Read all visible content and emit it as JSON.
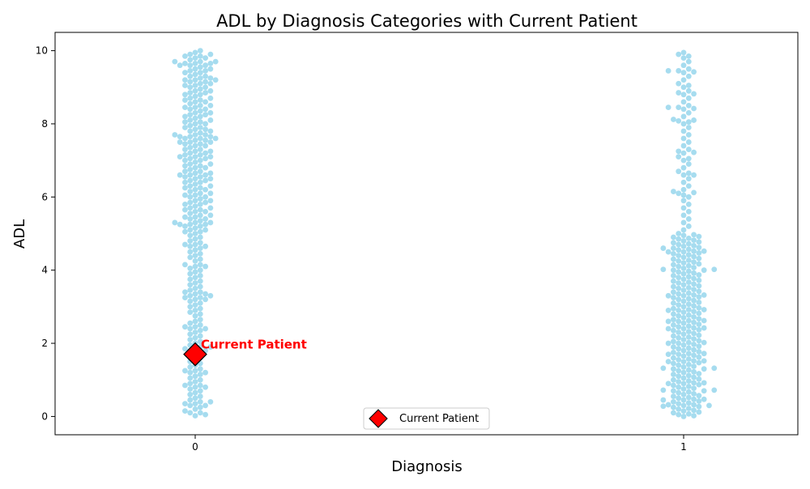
{
  "chart_data": {
    "type": "scatter",
    "subtype": "swarm",
    "title": "ADL by Diagnosis Categories with Current Patient",
    "xlabel": "Diagnosis",
    "ylabel": "ADL",
    "categories": [
      "0",
      "1"
    ],
    "ylim": [
      -0.5,
      10.5
    ],
    "yticks": [
      "0",
      "2",
      "4",
      "6",
      "8",
      "10"
    ],
    "grid": false,
    "legend": {
      "placement": "lower-center",
      "entries": [
        "Current Patient"
      ]
    },
    "series": [
      {
        "category": "0",
        "color": "#a6dcef",
        "values": [
          0.02,
          0.05,
          0.1,
          0.15,
          0.2,
          0.3,
          0.35,
          0.4,
          0.5,
          0.55,
          0.6,
          0.7,
          0.8,
          0.85,
          0.9,
          1.0,
          1.05,
          1.1,
          1.2,
          1.25,
          1.3,
          1.4,
          1.5,
          1.55,
          1.6,
          1.7,
          1.8,
          1.9,
          2.0,
          2.1,
          2.2,
          2.3,
          2.4,
          2.5,
          2.6,
          2.8,
          2.9,
          3.0,
          3.1,
          3.2,
          3.3,
          3.4,
          3.5,
          3.6,
          3.7,
          3.8,
          3.9,
          4.0,
          4.1,
          4.3,
          4.4,
          4.5,
          4.6,
          4.7,
          4.8,
          4.9,
          5.0,
          5.1,
          5.2,
          5.3,
          5.4,
          5.5,
          5.6,
          5.7,
          5.8,
          5.9,
          6.0,
          6.1,
          6.2,
          6.3,
          6.4,
          6.5,
          6.6,
          6.7,
          6.8,
          6.9,
          7.0,
          7.1,
          7.2,
          7.3,
          7.4,
          7.5,
          7.6,
          7.7,
          7.8,
          7.9,
          8.0,
          8.1,
          8.2,
          8.3,
          8.4,
          8.5,
          8.6,
          8.7,
          8.8,
          8.9,
          9.0,
          9.1,
          9.2,
          9.3,
          9.4,
          9.5,
          9.6,
          9.7,
          9.8,
          9.9,
          10.0,
          0.1,
          0.25,
          0.45,
          0.65,
          0.75,
          0.95,
          1.15,
          1.35,
          1.45,
          1.65,
          1.75,
          1.85,
          1.95,
          2.05,
          2.15,
          2.25,
          2.35,
          2.45,
          2.55,
          2.65,
          2.75,
          2.85,
          2.95,
          3.05,
          3.15,
          3.25,
          3.35,
          3.45,
          3.55,
          3.65,
          3.75,
          3.85,
          3.95,
          4.05,
          4.15,
          4.25,
          4.35,
          4.45,
          4.55,
          4.65,
          4.75,
          4.85,
          4.95,
          5.05,
          5.15,
          5.25,
          5.35,
          5.45,
          5.55,
          5.65,
          5.75,
          5.85,
          5.95,
          6.05,
          6.15,
          6.25,
          6.35,
          6.45,
          6.55,
          6.65,
          6.75,
          6.85,
          6.95,
          7.05,
          7.15,
          7.25,
          7.35,
          7.45,
          7.55,
          7.65,
          7.75,
          7.85,
          7.95,
          8.05,
          8.15,
          8.25,
          8.35,
          8.45,
          8.55,
          8.65,
          8.75,
          8.85,
          8.95,
          9.05,
          9.15,
          9.25,
          9.35,
          9.45,
          9.55,
          9.65,
          9.75,
          9.85,
          9.95,
          5.1,
          5.3,
          5.5,
          5.7,
          5.9,
          6.1,
          6.3,
          6.5,
          6.7,
          6.9,
          7.1,
          7.3,
          7.5,
          7.7,
          7.9,
          8.1,
          8.3,
          8.5,
          8.7,
          8.9,
          9.1,
          9.3,
          9.5,
          9.7,
          9.9,
          5.2,
          5.4,
          5.6,
          5.8,
          6.0,
          6.2,
          6.4,
          6.6,
          6.8,
          7.0,
          7.2,
          7.4,
          7.6,
          7.8,
          8.0,
          8.2,
          8.4,
          8.6,
          8.8,
          9.0,
          9.2,
          9.4,
          9.6,
          9.8,
          5.05,
          5.25,
          5.45,
          5.65,
          5.85,
          6.05,
          6.25,
          6.45,
          6.65,
          6.85,
          7.05,
          7.25,
          7.45,
          7.65,
          7.85,
          8.05,
          8.25,
          8.45,
          8.65,
          8.85,
          9.05,
          9.25,
          9.45,
          9.65,
          9.85,
          7.6,
          7.65,
          7.7,
          7.5,
          7.55,
          7.1,
          7.15,
          9.2,
          9.15,
          9.6,
          9.65,
          9.7,
          6.6,
          6.55,
          5.3,
          5.25,
          0.3,
          0.35,
          0.4,
          0.8,
          0.85,
          1.2,
          1.25,
          1.8,
          1.85,
          1.9,
          2.4,
          2.45,
          3.2,
          3.25,
          3.3,
          3.35,
          3.4,
          4.1,
          4.15,
          4.7,
          4.65
        ]
      },
      {
        "category": "1",
        "color": "#a6dcef",
        "values": [
          0.0,
          0.05,
          0.1,
          0.15,
          0.2,
          0.25,
          0.3,
          0.35,
          0.4,
          0.45,
          0.5,
          0.55,
          0.6,
          0.65,
          0.7,
          0.75,
          0.8,
          0.85,
          0.9,
          0.95,
          1.0,
          1.05,
          1.1,
          1.15,
          1.2,
          1.25,
          1.3,
          1.35,
          1.4,
          1.45,
          1.5,
          1.55,
          1.6,
          1.65,
          1.7,
          1.75,
          1.8,
          1.85,
          1.9,
          1.95,
          2.0,
          2.05,
          2.1,
          2.15,
          2.2,
          2.25,
          2.3,
          2.35,
          2.4,
          2.45,
          2.5,
          2.55,
          2.6,
          2.65,
          2.7,
          2.75,
          2.8,
          2.85,
          2.9,
          2.95,
          3.0,
          3.05,
          3.1,
          3.15,
          3.2,
          3.25,
          3.3,
          3.35,
          3.4,
          3.45,
          3.5,
          3.55,
          3.6,
          3.65,
          3.7,
          3.75,
          3.8,
          3.85,
          3.9,
          3.95,
          4.0,
          4.05,
          4.1,
          4.15,
          4.2,
          4.25,
          4.3,
          4.35,
          4.4,
          4.45,
          4.5,
          4.55,
          4.6,
          4.65,
          4.7,
          4.75,
          4.8,
          4.85,
          4.9,
          4.95,
          5.0,
          0.02,
          0.12,
          0.22,
          0.32,
          0.42,
          0.52,
          0.62,
          0.72,
          0.82,
          0.92,
          1.02,
          1.12,
          1.22,
          1.32,
          1.42,
          1.52,
          1.62,
          1.72,
          1.82,
          1.92,
          2.02,
          2.12,
          2.22,
          2.32,
          2.42,
          2.52,
          2.62,
          2.72,
          2.82,
          2.92,
          3.02,
          3.12,
          3.22,
          3.32,
          3.42,
          3.52,
          3.62,
          3.72,
          3.82,
          3.92,
          4.02,
          4.12,
          4.22,
          4.32,
          4.42,
          4.52,
          4.62,
          4.72,
          4.82,
          4.92,
          0.07,
          0.17,
          0.27,
          0.37,
          0.47,
          0.57,
          0.67,
          0.77,
          0.87,
          0.97,
          1.07,
          1.17,
          1.27,
          1.37,
          1.47,
          1.57,
          1.67,
          1.77,
          1.87,
          1.97,
          2.07,
          2.17,
          2.27,
          2.37,
          2.47,
          2.57,
          2.67,
          2.77,
          2.87,
          2.97,
          3.07,
          3.17,
          3.27,
          3.37,
          3.47,
          3.57,
          3.67,
          3.77,
          3.87,
          3.97,
          4.07,
          4.17,
          4.27,
          4.37,
          4.47,
          4.57,
          4.67,
          4.77,
          4.87,
          4.97,
          0.28,
          0.3,
          0.32,
          0.45,
          0.47,
          0.7,
          0.72,
          0.9,
          0.92,
          1.3,
          1.32,
          1.5,
          1.52,
          1.7,
          1.72,
          2.0,
          2.02,
          2.4,
          2.42,
          2.6,
          2.62,
          2.9,
          2.92,
          3.3,
          3.32,
          4.0,
          4.02,
          4.5,
          4.52,
          4.6,
          5.1,
          5.3,
          5.4,
          5.6,
          5.8,
          6.0,
          6.1,
          6.2,
          6.4,
          6.6,
          6.7,
          6.9,
          7.2,
          7.4,
          7.6,
          7.8,
          8.0,
          8.1,
          8.2,
          8.4,
          8.5,
          8.6,
          8.8,
          9.0,
          9.1,
          9.2,
          9.4,
          9.5,
          9.6,
          9.8,
          9.9,
          9.95,
          5.2,
          5.5,
          5.7,
          5.9,
          6.05,
          6.3,
          6.5,
          6.8,
          7.1,
          7.3,
          7.5,
          7.7,
          7.9,
          8.05,
          8.3,
          8.45,
          8.7,
          8.9,
          9.05,
          9.3,
          9.45,
          9.7,
          9.85,
          6.15,
          6.12,
          7.25,
          7.22,
          8.12,
          8.08,
          8.45,
          8.42,
          8.85,
          8.82,
          9.45,
          9.42,
          6.6,
          6.65,
          7.0,
          7.05
        ]
      }
    ],
    "highlight": {
      "label": "Current Patient",
      "x": "0",
      "y": 1.7,
      "marker": "diamond",
      "color": "#ff0000"
    }
  }
}
